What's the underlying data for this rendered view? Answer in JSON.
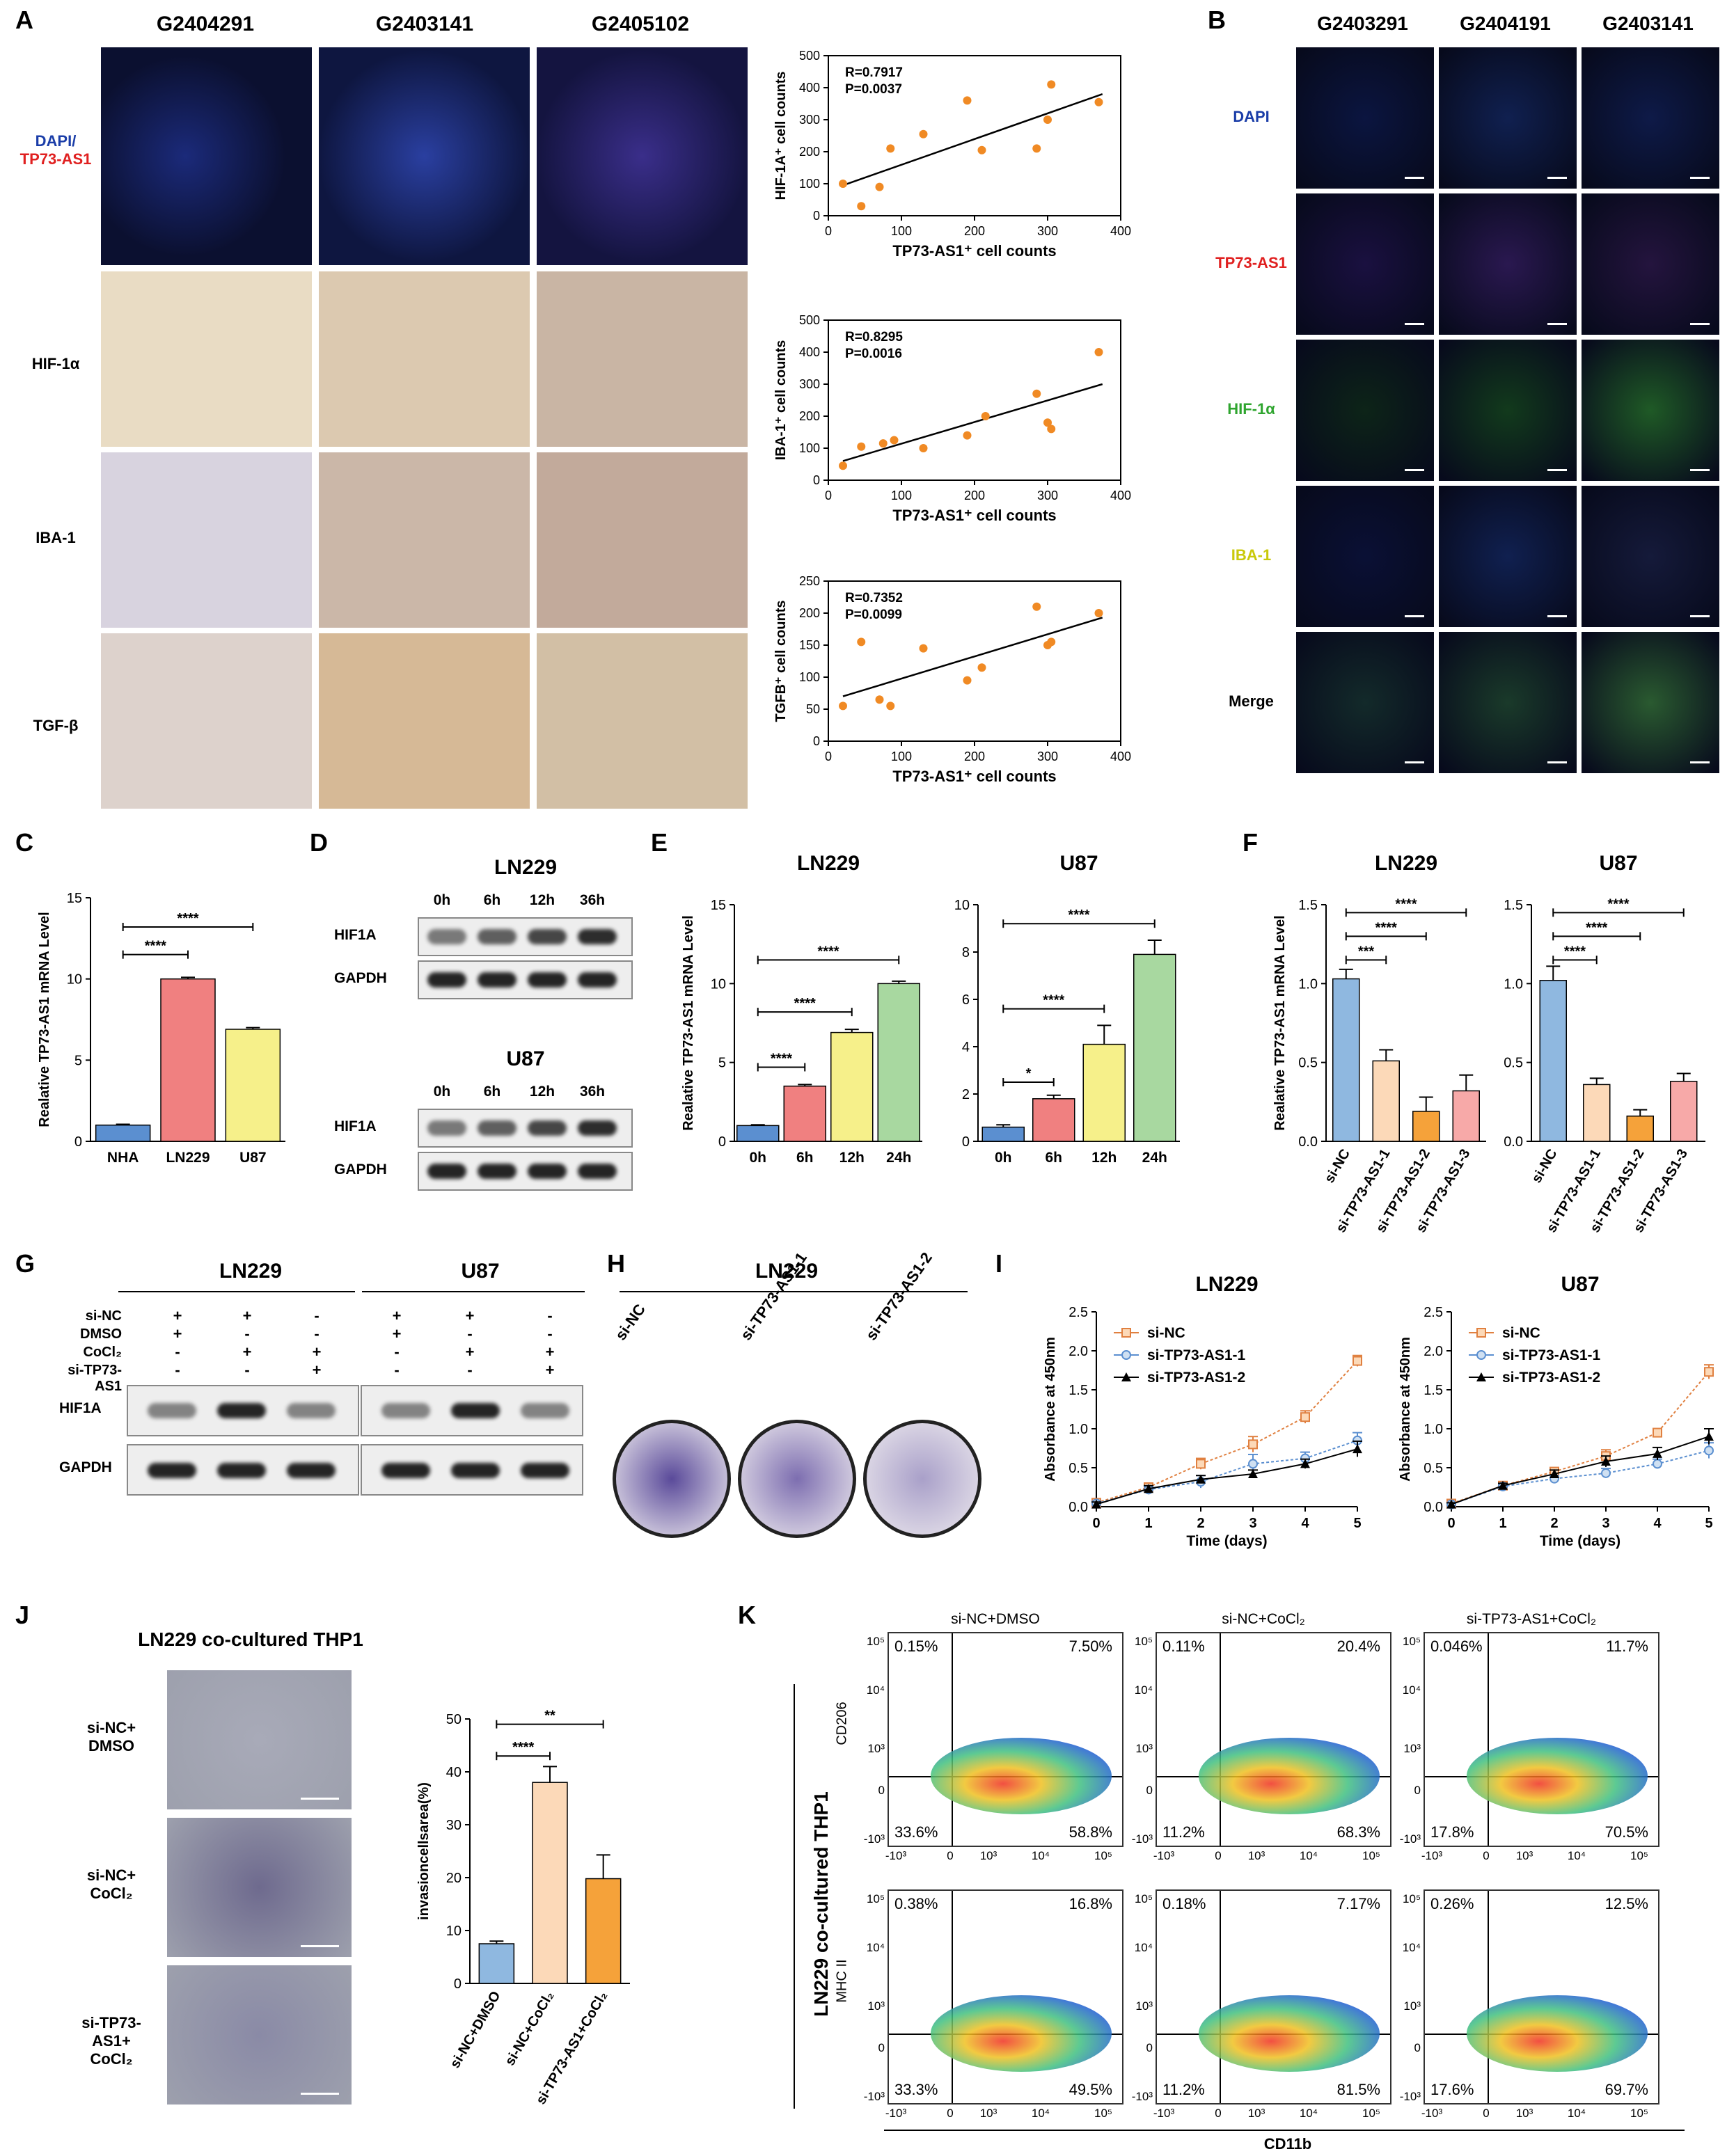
{
  "panels": {
    "A": {
      "label": "A",
      "columns": [
        "G2404291",
        "G2403141",
        "G2405102"
      ],
      "rows": [
        {
          "label": "DAPI/",
          "label2": "TP73-AS1"
        },
        {
          "label": "HIF-1α"
        },
        {
          "label": "IBA-1"
        },
        {
          "label": "TGF-β"
        }
      ]
    },
    "B": {
      "label": "B",
      "columns": [
        "G2403291",
        "G2404191",
        "G2403141"
      ],
      "rows": [
        "DAPI",
        "TP73-AS1",
        "HIF-1α",
        "IBA-1",
        "Merge"
      ],
      "row_colors": [
        "#1a3da8",
        "#e02020",
        "#2fa52f",
        "#c9c90a",
        "#000000"
      ]
    },
    "C": {
      "label": "C"
    },
    "D": {
      "label": "D",
      "blocks": [
        {
          "cell": "LN229",
          "times": [
            "0h",
            "6h",
            "12h",
            "36h"
          ],
          "rows": [
            "HIF1A",
            "GAPDH"
          ]
        },
        {
          "cell": "U87",
          "times": [
            "0h",
            "6h",
            "12h",
            "36h"
          ],
          "rows": [
            "HIF1A",
            "GAPDH"
          ]
        }
      ]
    },
    "E": {
      "label": "E"
    },
    "F": {
      "label": "F"
    },
    "G": {
      "label": "G",
      "cells": [
        "LN229",
        "U87"
      ],
      "conditions": [
        {
          "name": "si-NC",
          "signs": [
            "+",
            "+",
            "-",
            "+",
            "+",
            "-"
          ]
        },
        {
          "name": "DMSO",
          "signs": [
            "+",
            "-",
            "-",
            "+",
            "-",
            "-"
          ]
        },
        {
          "name": "CoCl₂",
          "signs": [
            "-",
            "+",
            "+",
            "-",
            "+",
            "+"
          ]
        },
        {
          "name": "si-TP73-AS1",
          "signs": [
            "-",
            "-",
            "+",
            "-",
            "-",
            "+"
          ]
        }
      ],
      "blots": [
        "HIF1A",
        "GAPDH"
      ]
    },
    "H": {
      "label": "H",
      "title": "LN229",
      "dishes": [
        "si-NC",
        "si-TP73-AS1-1",
        "si-TP73-AS1-2"
      ]
    },
    "I": {
      "label": "I"
    },
    "J": {
      "label": "J",
      "title": "LN229 co-cultured THP1",
      "rows": [
        "si-NC+\nDMSO",
        "si-NC+\nCoCl₂",
        "si-TP73-AS1+\nCoCl₂"
      ]
    },
    "K": {
      "label": "K",
      "side_title": "LN229 co-cultured THP1",
      "columns": [
        "si-NC+DMSO",
        "si-NC+CoCl₂",
        "si-TP73-AS1+CoCl₂"
      ],
      "row_axes": [
        "CD206",
        "MHC II"
      ],
      "x_axis": "CD11b",
      "quadrants": [
        [
          [
            "0.15%",
            "7.50%",
            "33.6%",
            "58.8%"
          ],
          [
            "0.11%",
            "20.4%",
            "11.2%",
            "68.3%"
          ],
          [
            "0.046%",
            "11.7%",
            "17.8%",
            "70.5%"
          ]
        ],
        [
          [
            "0.38%",
            "16.8%",
            "33.3%",
            "49.5%"
          ],
          [
            "0.18%",
            "7.17%",
            "11.2%",
            "81.5%"
          ],
          [
            "0.26%",
            "12.5%",
            "17.6%",
            "69.7%"
          ]
        ]
      ]
    }
  },
  "chart_data": [
    {
      "id": "A-scatter-1",
      "type": "scatter",
      "annotation": [
        "R=0.7917",
        "P=0.0037"
      ],
      "xlabel": "TP73-AS1⁺ cell counts",
      "ylabel": "HIF-1A⁺ cell counts",
      "xlim": [
        0,
        400
      ],
      "ylim": [
        0,
        500
      ],
      "xticks": [
        0,
        100,
        200,
        300,
        400
      ],
      "yticks": [
        0,
        100,
        200,
        300,
        400,
        500
      ],
      "x": [
        20,
        45,
        70,
        85,
        130,
        190,
        210,
        285,
        300,
        305,
        370
      ],
      "y": [
        100,
        30,
        90,
        210,
        255,
        360,
        205,
        210,
        300,
        410,
        355
      ],
      "trend": [
        [
          20,
          95
        ],
        [
          375,
          380
        ]
      ]
    },
    {
      "id": "A-scatter-2",
      "type": "scatter",
      "annotation": [
        "R=0.8295",
        "P=0.0016"
      ],
      "xlabel": "TP73-AS1⁺ cell counts",
      "ylabel": "IBA-1⁺ cell counts",
      "xlim": [
        0,
        400
      ],
      "ylim": [
        0,
        500
      ],
      "xticks": [
        0,
        100,
        200,
        300,
        400
      ],
      "yticks": [
        0,
        100,
        200,
        300,
        400,
        500
      ],
      "x": [
        20,
        45,
        75,
        90,
        130,
        190,
        215,
        285,
        300,
        305,
        370
      ],
      "y": [
        45,
        105,
        115,
        125,
        100,
        140,
        200,
        270,
        180,
        160,
        400
      ],
      "trend": [
        [
          20,
          60
        ],
        [
          375,
          300
        ]
      ]
    },
    {
      "id": "A-scatter-3",
      "type": "scatter",
      "annotation": [
        "R=0.7352",
        "P=0.0099"
      ],
      "xlabel": "TP73-AS1⁺ cell counts",
      "ylabel": "TGFB⁺ cell counts",
      "xlim": [
        0,
        400
      ],
      "ylim": [
        0,
        250
      ],
      "xticks": [
        0,
        100,
        200,
        300,
        400
      ],
      "yticks": [
        0,
        50,
        100,
        150,
        200,
        250
      ],
      "x": [
        20,
        45,
        70,
        85,
        130,
        190,
        210,
        285,
        300,
        305,
        370
      ],
      "y": [
        55,
        155,
        65,
        55,
        145,
        95,
        115,
        210,
        150,
        155,
        200
      ],
      "trend": [
        [
          20,
          70
        ],
        [
          375,
          193
        ]
      ]
    },
    {
      "id": "C",
      "type": "bar",
      "ylabel": "Realative TP73-AS1 mRNA Level",
      "categories": [
        "NHA",
        "LN229",
        "U87"
      ],
      "values": [
        1.0,
        10.0,
        6.9
      ],
      "errors": [
        0.05,
        0.1,
        0.1
      ],
      "colors": [
        "#5b8fd0",
        "#f08080",
        "#f6f08a"
      ],
      "ylim": [
        0,
        15
      ],
      "yticks": [
        0,
        5,
        10,
        15
      ],
      "sig": [
        {
          "from": 0,
          "to": 1,
          "text": "****",
          "level": 11.5
        },
        {
          "from": 0,
          "to": 2,
          "text": "****",
          "level": 13.2
        }
      ]
    },
    {
      "id": "E-LN229",
      "type": "bar",
      "title": "LN229",
      "ylabel": "Realative TP73-AS1 mRNA Level",
      "categories": [
        "0h",
        "6h",
        "12h",
        "24h"
      ],
      "values": [
        1.0,
        3.5,
        6.9,
        10.0
      ],
      "errors": [
        0.05,
        0.1,
        0.2,
        0.15
      ],
      "colors": [
        "#5b8fd0",
        "#f08080",
        "#f6f08a",
        "#a8d8a0"
      ],
      "ylim": [
        0,
        15
      ],
      "yticks": [
        0,
        5,
        10,
        15
      ],
      "sig": [
        {
          "from": 0,
          "to": 1,
          "text": "****",
          "level": 4.7
        },
        {
          "from": 0,
          "to": 2,
          "text": "****",
          "level": 8.2
        },
        {
          "from": 0,
          "to": 3,
          "text": "****",
          "level": 11.5
        }
      ]
    },
    {
      "id": "E-U87",
      "type": "bar",
      "title": "U87",
      "ylabel": "",
      "categories": [
        "0h",
        "6h",
        "12h",
        "24h"
      ],
      "values": [
        0.6,
        1.8,
        4.1,
        7.9
      ],
      "errors": [
        0.1,
        0.15,
        0.8,
        0.6
      ],
      "colors": [
        "#5b8fd0",
        "#f08080",
        "#f6f08a",
        "#a8d8a0"
      ],
      "ylim": [
        0,
        10
      ],
      "yticks": [
        0,
        2,
        4,
        6,
        8,
        10
      ],
      "sig": [
        {
          "from": 0,
          "to": 1,
          "text": "*",
          "level": 2.5
        },
        {
          "from": 0,
          "to": 2,
          "text": "****",
          "level": 5.6
        },
        {
          "from": 0,
          "to": 3,
          "text": "****",
          "level": 9.2
        }
      ]
    },
    {
      "id": "F-LN229",
      "type": "bar",
      "title": "LN229",
      "ylabel": "Realative TP73-AS1 mRNA Level",
      "categories": [
        "si-NC",
        "si-TP73-AS1-1",
        "si-TP73-AS1-2",
        "si-TP73-AS1-3"
      ],
      "values": [
        1.03,
        0.51,
        0.19,
        0.32
      ],
      "errors": [
        0.06,
        0.07,
        0.09,
        0.1
      ],
      "colors": [
        "#8fb8e0",
        "#fcd9b8",
        "#f5a23a",
        "#f7a9a8"
      ],
      "ylim": [
        0,
        1.5
      ],
      "yticks": [
        0,
        0.5,
        1.0,
        1.5
      ],
      "sig": [
        {
          "from": 0,
          "to": 1,
          "text": "***",
          "level": 1.15
        },
        {
          "from": 0,
          "to": 2,
          "text": "****",
          "level": 1.3
        },
        {
          "from": 0,
          "to": 3,
          "text": "****",
          "level": 1.45
        }
      ]
    },
    {
      "id": "F-U87",
      "type": "bar",
      "title": "U87",
      "ylabel": "",
      "categories": [
        "si-NC",
        "si-TP73-AS1-1",
        "si-TP73-AS1-2",
        "si-TP73-AS1-3"
      ],
      "values": [
        1.02,
        0.36,
        0.16,
        0.38
      ],
      "errors": [
        0.09,
        0.04,
        0.04,
        0.05
      ],
      "colors": [
        "#8fb8e0",
        "#fcd9b8",
        "#f5a23a",
        "#f7a9a8"
      ],
      "ylim": [
        0,
        1.5
      ],
      "yticks": [
        0,
        0.5,
        1.0,
        1.5
      ],
      "sig": [
        {
          "from": 0,
          "to": 1,
          "text": "****",
          "level": 1.15
        },
        {
          "from": 0,
          "to": 2,
          "text": "****",
          "level": 1.3
        },
        {
          "from": 0,
          "to": 3,
          "text": "****",
          "level": 1.45
        }
      ]
    },
    {
      "id": "I-LN229",
      "type": "line",
      "title": "LN229",
      "xlabel": "Time (days)",
      "ylabel": "Absorbance at 450nm",
      "xlim": [
        0,
        5
      ],
      "ylim": [
        0,
        2.5
      ],
      "xticks": [
        0,
        1,
        2,
        3,
        4,
        5
      ],
      "yticks": [
        0,
        0.5,
        1.0,
        1.5,
        2.0,
        2.5
      ],
      "x": [
        0,
        1,
        2,
        3,
        4,
        5
      ],
      "series": [
        {
          "name": "si-NC",
          "values": [
            0.05,
            0.25,
            0.55,
            0.8,
            1.15,
            1.87
          ],
          "errors": [
            0.03,
            0.05,
            0.07,
            0.1,
            0.08,
            0.07
          ],
          "color": "#e08040",
          "marker": "square"
        },
        {
          "name": "si-TP73-AS1-1",
          "values": [
            0.04,
            0.22,
            0.32,
            0.55,
            0.62,
            0.85
          ],
          "errors": [
            0.03,
            0.04,
            0.08,
            0.12,
            0.08,
            0.1
          ],
          "color": "#5b8fd0",
          "marker": "circle"
        },
        {
          "name": "si-TP73-AS1-2",
          "values": [
            0.03,
            0.23,
            0.35,
            0.42,
            0.55,
            0.74
          ],
          "errors": [
            0.03,
            0.04,
            0.05,
            0.05,
            0.06,
            0.1
          ],
          "color": "#000000",
          "marker": "triangle"
        }
      ]
    },
    {
      "id": "I-U87",
      "type": "line",
      "title": "U87",
      "xlabel": "Time (days)",
      "ylabel": "Absorbance at 450nm",
      "xlim": [
        0,
        5
      ],
      "ylim": [
        0,
        2.5
      ],
      "xticks": [
        0,
        1,
        2,
        3,
        4,
        5
      ],
      "yticks": [
        0,
        0.5,
        1.0,
        1.5,
        2.0,
        2.5
      ],
      "x": [
        0,
        1,
        2,
        3,
        4,
        5
      ],
      "series": [
        {
          "name": "si-NC",
          "values": [
            0.04,
            0.27,
            0.45,
            0.65,
            0.95,
            1.73
          ],
          "errors": [
            0.02,
            0.03,
            0.05,
            0.08,
            0.05,
            0.09
          ],
          "color": "#e08040",
          "marker": "square"
        },
        {
          "name": "si-TP73-AS1-1",
          "values": [
            0.03,
            0.26,
            0.36,
            0.43,
            0.55,
            0.72
          ],
          "errors": [
            0.02,
            0.03,
            0.04,
            0.06,
            0.06,
            0.1
          ],
          "color": "#5b8fd0",
          "marker": "circle"
        },
        {
          "name": "si-TP73-AS1-2",
          "values": [
            0.03,
            0.27,
            0.42,
            0.58,
            0.68,
            0.9
          ],
          "errors": [
            0.02,
            0.03,
            0.05,
            0.07,
            0.08,
            0.1
          ],
          "color": "#000000",
          "marker": "triangle"
        }
      ]
    },
    {
      "id": "J",
      "type": "bar",
      "ylabel": "invasioncellsarea(%)",
      "categories": [
        "si-NC+DMSO",
        "si-NC+CoCl₂",
        "si-TP73-AS1+CoCl₂"
      ],
      "values": [
        7.5,
        38.0,
        19.8
      ],
      "errors": [
        0.5,
        3.0,
        4.5
      ],
      "colors": [
        "#8fb8e0",
        "#fcd9b8",
        "#f5a23a"
      ],
      "ylim": [
        0,
        50
      ],
      "yticks": [
        0,
        10,
        20,
        30,
        40,
        50
      ],
      "sig": [
        {
          "from": 0,
          "to": 1,
          "text": "****",
          "level": 43
        },
        {
          "from": 0,
          "to": 2,
          "text": "**",
          "level": 49
        }
      ]
    }
  ]
}
